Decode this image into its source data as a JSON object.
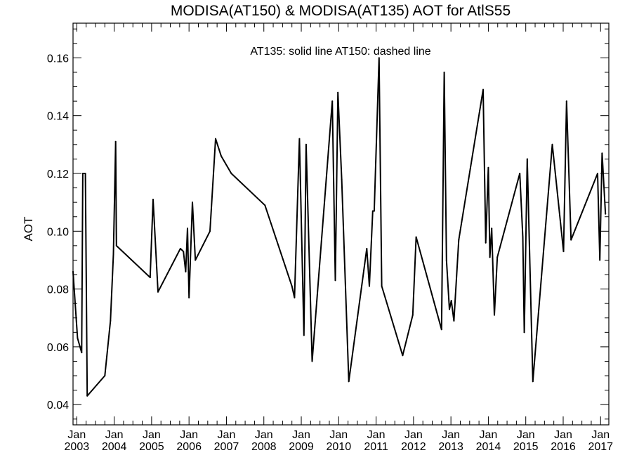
{
  "chart_data": {
    "type": "line",
    "title": "MODISA(AT150) & MODISA(AT135)  AOT for AtlS55",
    "annotation": "AT135: solid line   AT150: dashed line",
    "xlabel": "",
    "ylabel": "AOT",
    "xlim": [
      2002.9,
      2017.22
    ],
    "ylim": [
      0.033,
      0.172
    ],
    "grid": false,
    "y_ticks": [
      0.04,
      0.06,
      0.08,
      0.1,
      0.12,
      0.14,
      0.16
    ],
    "y_tick_labels": [
      "0.04",
      "0.06",
      "0.08",
      "0.10",
      "0.12",
      "0.14",
      "0.16"
    ],
    "x_ticks": [
      2003,
      2004,
      2005,
      2006,
      2007,
      2008,
      2009,
      2010,
      2011,
      2012,
      2013,
      2014,
      2015,
      2016,
      2017
    ],
    "x_tick_labels": [
      {
        "month": "Jan",
        "year": "2003"
      },
      {
        "month": "Jan",
        "year": "2004"
      },
      {
        "month": "Jan",
        "year": "2005"
      },
      {
        "month": "Jan",
        "year": "2006"
      },
      {
        "month": "Jan",
        "year": "2007"
      },
      {
        "month": "Jan",
        "year": "2008"
      },
      {
        "month": "Jan",
        "year": "2009"
      },
      {
        "month": "Jan",
        "year": "2010"
      },
      {
        "month": "Jan",
        "year": "2011"
      },
      {
        "month": "Jan",
        "year": "2012"
      },
      {
        "month": "Jan",
        "year": "2013"
      },
      {
        "month": "Jan",
        "year": "2014"
      },
      {
        "month": "Jan",
        "year": "2015"
      },
      {
        "month": "Jan",
        "year": "2016"
      },
      {
        "month": "Jan",
        "year": "2017"
      }
    ],
    "series": [
      {
        "name": "AT135",
        "style": "solid",
        "x": [
          2002.9,
          2003.02,
          2003.13,
          2003.16,
          2003.23,
          2003.28,
          2003.75,
          2003.9,
          2003.98,
          2004.04,
          2004.06,
          2004.96,
          2005.04,
          2005.17,
          2005.77,
          2005.85,
          2005.91,
          2005.96,
          2006.0,
          2006.09,
          2006.17,
          2006.56,
          2006.71,
          2006.86,
          2007.13,
          2008.03,
          2008.75,
          2008.82,
          2008.95,
          2009.07,
          2009.13,
          2009.29,
          2009.83,
          2009.91,
          2009.98,
          2010.08,
          2010.27,
          2010.75,
          2010.82,
          2010.91,
          2010.95,
          2011.08,
          2011.15,
          2011.71,
          2011.98,
          2012.07,
          2012.75,
          2012.82,
          2012.88,
          2012.96,
          2013.01,
          2013.08,
          2013.21,
          2013.86,
          2013.93,
          2014.0,
          2014.04,
          2014.09,
          2014.16,
          2014.24,
          2014.84,
          2014.92,
          2014.96,
          2015.04,
          2015.19,
          2015.71,
          2016.01,
          2016.09,
          2016.21,
          2016.92,
          2016.98,
          2017.04,
          2017.13
        ],
        "y": [
          0.086,
          0.063,
          0.058,
          0.12,
          0.12,
          0.043,
          0.05,
          0.069,
          0.092,
          0.131,
          0.095,
          0.084,
          0.111,
          0.079,
          0.094,
          0.093,
          0.086,
          0.101,
          0.077,
          0.11,
          0.09,
          0.1,
          0.132,
          0.126,
          0.12,
          0.109,
          0.081,
          0.077,
          0.132,
          0.064,
          0.13,
          0.055,
          0.145,
          0.083,
          0.148,
          0.118,
          0.048,
          0.094,
          0.081,
          0.107,
          0.107,
          0.16,
          0.081,
          0.057,
          0.071,
          0.098,
          0.066,
          0.155,
          0.09,
          0.073,
          0.076,
          0.069,
          0.097,
          0.149,
          0.096,
          0.122,
          0.091,
          0.101,
          0.071,
          0.091,
          0.12,
          0.098,
          0.065,
          0.125,
          0.048,
          0.13,
          0.093,
          0.145,
          0.097,
          0.12,
          0.09,
          0.127,
          0.106
        ]
      }
    ]
  }
}
